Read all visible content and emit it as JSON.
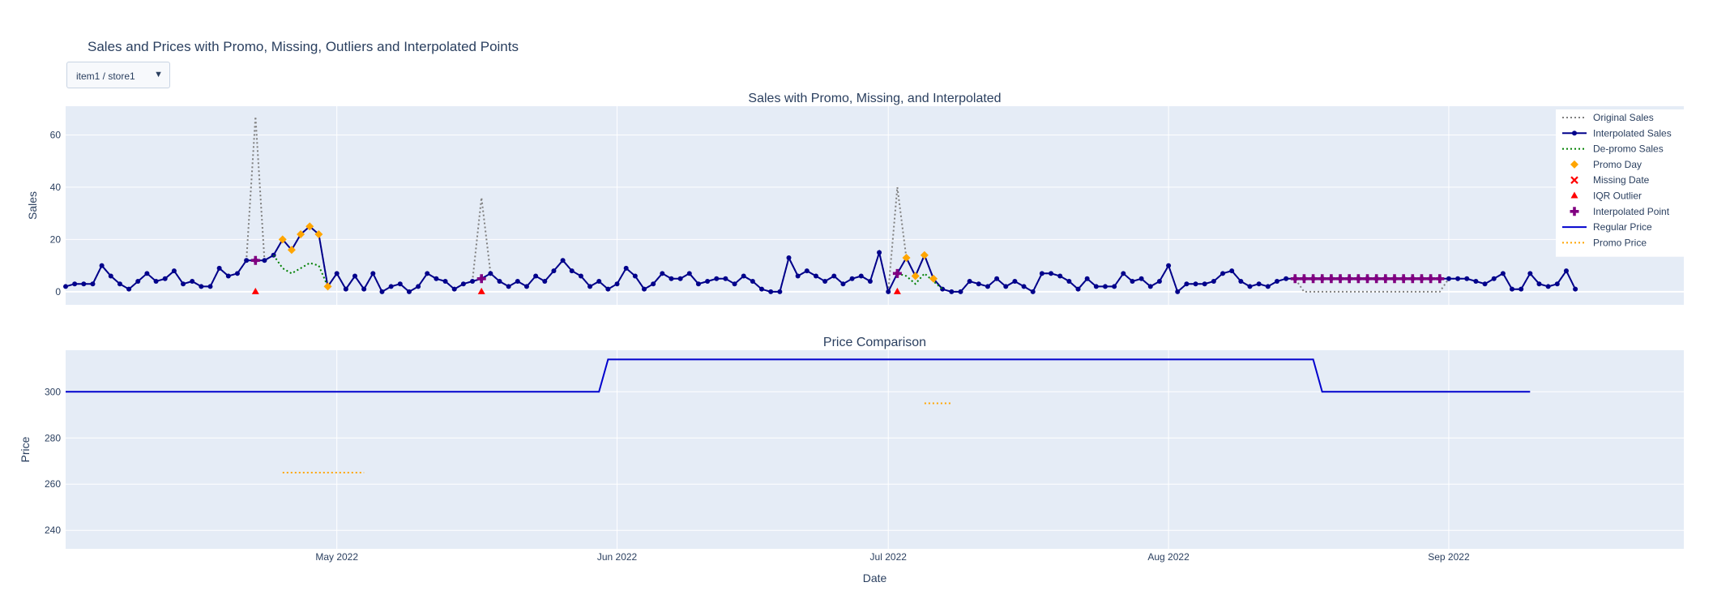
{
  "title": "Sales and Prices with Promo, Missing, Outliers and Interpolated Points",
  "selector": {
    "label": "item1 / store1",
    "arrow": "▼"
  },
  "chart_data": [
    {
      "type": "line",
      "title": "Sales with Promo, Missing, and Interpolated",
      "xlabel": "",
      "ylabel": "Sales",
      "x_start": "2022-04-01",
      "xlim": [
        "2022-04-01",
        "2022-09-27"
      ],
      "ylim": [
        -5,
        71
      ],
      "yticks": [
        0,
        20,
        40,
        60
      ],
      "grid": true,
      "legend_position": "right",
      "series": [
        {
          "name": "Original Sales",
          "style": "dotted",
          "color": "#7f7f7f",
          "values": [
            2,
            3,
            3,
            3,
            10,
            6,
            3,
            1,
            4,
            7,
            4,
            5,
            8,
            3,
            4,
            2,
            2,
            9,
            6,
            7,
            12,
            67,
            12,
            14,
            20,
            16,
            22,
            25,
            22,
            2,
            7,
            1,
            6,
            1,
            7,
            0,
            2,
            3,
            0,
            2,
            7,
            5,
            4,
            1,
            3,
            4,
            36,
            7,
            4,
            2,
            4,
            2,
            6,
            4,
            8,
            12,
            8,
            6,
            2,
            4,
            1,
            3,
            9,
            6,
            1,
            3,
            7,
            5,
            5,
            7,
            3,
            4,
            5,
            5,
            3,
            6,
            4,
            1,
            0,
            0,
            13,
            6,
            8,
            6,
            4,
            6,
            3,
            5,
            6,
            4,
            15,
            0,
            40,
            13,
            6,
            14,
            5,
            1,
            0,
            0,
            4,
            3,
            2,
            5,
            2,
            4,
            2,
            0,
            7,
            7,
            6,
            4,
            1,
            5,
            2,
            2,
            2,
            7,
            4,
            5,
            2,
            4,
            10,
            0,
            3,
            3,
            3,
            4,
            7,
            8,
            4,
            2,
            3,
            2,
            4,
            5,
            5,
            0,
            0,
            0,
            0,
            0,
            0,
            0,
            0,
            0,
            0,
            0,
            0,
            0,
            0,
            0,
            0,
            5,
            5,
            5,
            4,
            3,
            5,
            7,
            1,
            1,
            7,
            3,
            2,
            3,
            8,
            1
          ]
        },
        {
          "name": "Interpolated Sales",
          "style": "solid-markers",
          "color": "#00008b",
          "values": [
            2,
            3,
            3,
            3,
            10,
            6,
            3,
            1,
            4,
            7,
            4,
            5,
            8,
            3,
            4,
            2,
            2,
            9,
            6,
            7,
            12,
            12,
            12,
            14,
            20,
            16,
            22,
            25,
            22,
            2,
            7,
            1,
            6,
            1,
            7,
            0,
            2,
            3,
            0,
            2,
            7,
            5,
            4,
            1,
            3,
            4,
            5,
            7,
            4,
            2,
            4,
            2,
            6,
            4,
            8,
            12,
            8,
            6,
            2,
            4,
            1,
            3,
            9,
            6,
            1,
            3,
            7,
            5,
            5,
            7,
            3,
            4,
            5,
            5,
            3,
            6,
            4,
            1,
            0,
            0,
            13,
            6,
            8,
            6,
            4,
            6,
            3,
            5,
            6,
            4,
            15,
            0,
            7,
            13,
            6,
            14,
            5,
            1,
            0,
            0,
            4,
            3,
            2,
            5,
            2,
            4,
            2,
            0,
            7,
            7,
            6,
            4,
            1,
            5,
            2,
            2,
            2,
            7,
            4,
            5,
            2,
            4,
            10,
            0,
            3,
            3,
            3,
            4,
            7,
            8,
            4,
            2,
            3,
            2,
            4,
            5,
            5,
            5,
            5,
            5,
            5,
            5,
            5,
            5,
            5,
            5,
            5,
            5,
            5,
            5,
            5,
            5,
            5,
            5,
            5,
            5,
            4,
            3,
            5,
            7,
            1,
            1,
            7,
            3,
            2,
            3,
            8,
            1
          ]
        },
        {
          "name": "De-promo Sales",
          "style": "dotted",
          "color": "#008000",
          "segments": [
            {
              "start_index": 23,
              "values": [
                14,
                9,
                7,
                9,
                11,
                10,
                2
              ]
            },
            {
              "start_index": 92,
              "values": [
                7,
                6,
                3,
                7,
                4,
                1
              ]
            }
          ]
        },
        {
          "name": "Promo Day",
          "style": "marker-diamond",
          "color": "#ffa500",
          "points": [
            [
              24,
              20
            ],
            [
              25,
              16
            ],
            [
              26,
              22
            ],
            [
              27,
              25
            ],
            [
              28,
              22
            ],
            [
              29,
              2
            ],
            [
              93,
              13
            ],
            [
              94,
              6
            ],
            [
              95,
              14
            ],
            [
              96,
              5
            ]
          ]
        },
        {
          "name": "Missing Date",
          "style": "marker-x",
          "color": "#ff0000",
          "points": []
        },
        {
          "name": "IQR Outlier",
          "style": "marker-triangle",
          "color": "#ff0000",
          "points": [
            [
              21,
              0
            ],
            [
              46,
              0
            ],
            [
              92,
              0
            ]
          ]
        },
        {
          "name": "Interpolated Point",
          "style": "marker-cross",
          "color": "#800080",
          "points": [
            [
              21,
              12
            ],
            [
              46,
              5
            ],
            [
              92,
              7
            ],
            [
              136,
              5
            ],
            [
              137,
              5
            ],
            [
              138,
              5
            ],
            [
              139,
              5
            ],
            [
              140,
              5
            ],
            [
              141,
              5
            ],
            [
              142,
              5
            ],
            [
              143,
              5
            ],
            [
              144,
              5
            ],
            [
              145,
              5
            ],
            [
              146,
              5
            ],
            [
              147,
              5
            ],
            [
              148,
              5
            ],
            [
              149,
              5
            ],
            [
              150,
              5
            ],
            [
              151,
              5
            ],
            [
              152,
              5
            ]
          ]
        }
      ]
    },
    {
      "type": "line",
      "title": "Price Comparison",
      "xlabel": "Date",
      "ylabel": "Price",
      "xlim": [
        "2022-04-01",
        "2022-09-27"
      ],
      "ylim": [
        232,
        318
      ],
      "yticks": [
        240,
        260,
        280,
        300
      ],
      "xticks": [
        "May 2022",
        "Jun 2022",
        "Jul 2022",
        "Aug 2022",
        "Sep 2022"
      ],
      "xtick_dates": [
        "2022-05-01",
        "2022-06-01",
        "2022-07-01",
        "2022-08-01",
        "2022-09-01"
      ],
      "grid": true,
      "series": [
        {
          "name": "Regular Price",
          "style": "solid",
          "color": "#0000cd",
          "points": [
            [
              "2022-04-01",
              300
            ],
            [
              "2022-05-30",
              300
            ],
            [
              "2022-05-31",
              314
            ],
            [
              "2022-08-17",
              314
            ],
            [
              "2022-08-18",
              300
            ],
            [
              "2022-09-10",
              300
            ]
          ]
        },
        {
          "name": "Promo Price",
          "style": "dotted",
          "color": "#ffa500",
          "segments": [
            [
              [
                "2022-04-25",
                265
              ],
              [
                "2022-05-04",
                265
              ]
            ],
            [
              [
                "2022-07-05",
                295
              ],
              [
                "2022-07-08",
                295
              ]
            ]
          ]
        }
      ]
    }
  ]
}
